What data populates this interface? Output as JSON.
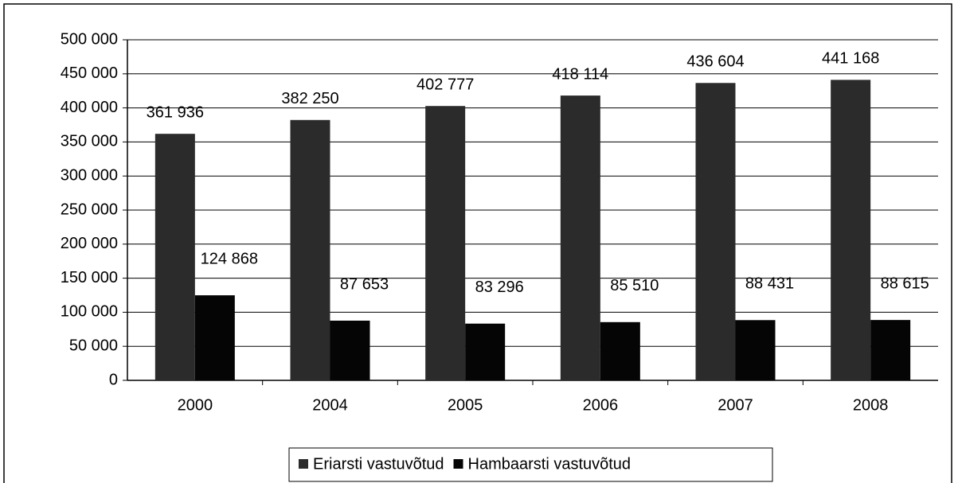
{
  "chart_data": {
    "type": "bar",
    "categories": [
      "2000",
      "2004",
      "2005",
      "2006",
      "2007",
      "2008"
    ],
    "series": [
      {
        "name": "Eriarsti vastuvõtud",
        "color": "#2b2b2b",
        "values": [
          361936,
          382250,
          402777,
          418114,
          436604,
          441168
        ],
        "value_labels": [
          "361 936",
          "382 250",
          "402 777",
          "418 114",
          "436 604",
          "441 168"
        ]
      },
      {
        "name": "Hambaarsti vastuvõtud",
        "color": "#050505",
        "values": [
          124868,
          87653,
          83296,
          85510,
          88431,
          88615
        ],
        "value_labels": [
          "124 868",
          "87 653",
          "83 296",
          "85 510",
          "88 431",
          "88 615"
        ]
      }
    ],
    "ylim": [
      0,
      500000
    ],
    "yticks": [
      0,
      {
        "value": 50000,
        "label": "50 000"
      },
      {
        "value": 100000,
        "label": "100 000"
      },
      {
        "value": 150000,
        "label": "150 000"
      },
      {
        "value": 200000,
        "label": "200 000"
      },
      {
        "value": 250000,
        "label": "250 000"
      },
      {
        "value": 300000,
        "label": "300 000"
      },
      {
        "value": 350000,
        "label": "350 000"
      },
      {
        "value": 400000,
        "label": "400 000"
      },
      {
        "value": 450000,
        "label": "450 000"
      },
      {
        "value": 500000,
        "label": "500 000"
      }
    ],
    "grid": true,
    "legend": "bottom"
  }
}
